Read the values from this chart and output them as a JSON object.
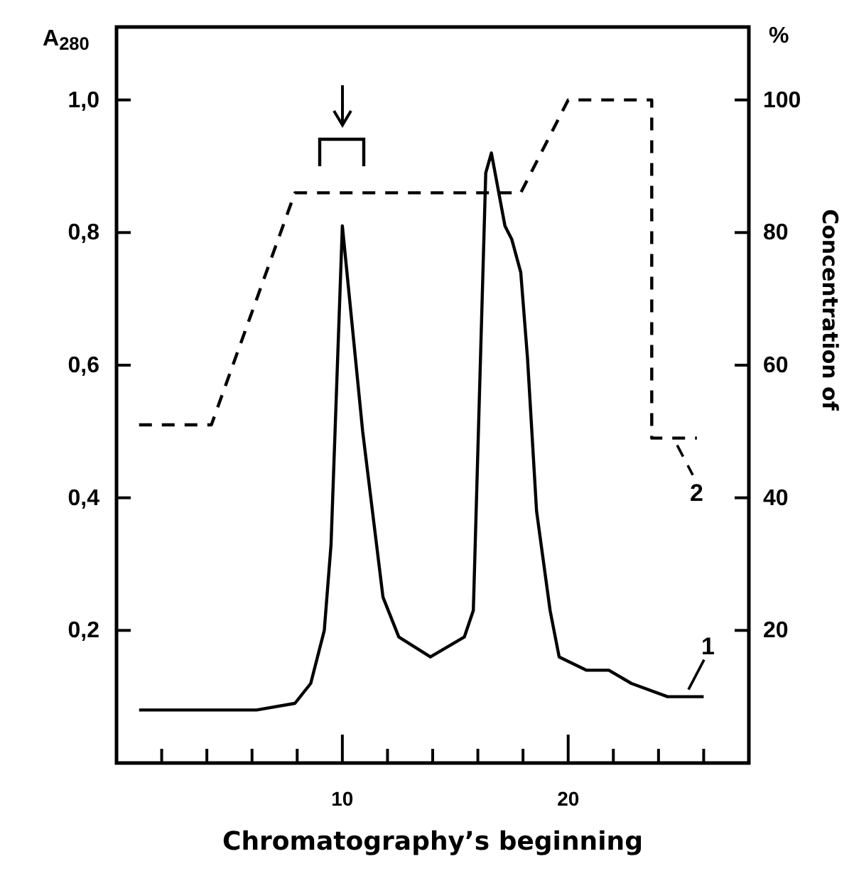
{
  "chart_data": {
    "type": "line",
    "xlabel": "Chromatography’s beginning",
    "ylabel": "A$_{280}$",
    "y2label": "%",
    "xlim": [
      0,
      28
    ],
    "xticks": [
      {
        "value": 2,
        "label": null
      },
      {
        "value": 4,
        "label": null
      },
      {
        "value": 6,
        "label": null
      },
      {
        "value": 8,
        "label": null
      },
      10,
      {
        "value": 12,
        "label": null
      },
      {
        "value": 14,
        "label": null
      },
      {
        "value": 16,
        "label": null
      },
      {
        "value": 18,
        "label": null
      },
      20,
      {
        "value": 22,
        "label": null
      },
      {
        "value": 24,
        "label": null
      },
      {
        "value": 26,
        "label": null
      }
    ],
    "ylim": [
      0,
      1.11
    ],
    "yticks": [
      {
        "value": 0.2,
        "label": "0,2"
      },
      {
        "value": 0.4,
        "label": "0,4"
      },
      {
        "value": 0.6,
        "label": "0,6"
      },
      {
        "value": 0.8,
        "label": "0,8"
      },
      {
        "value": 1.0,
        "label": "1,0"
      }
    ],
    "y2lim": [
      0,
      111
    ],
    "y2ticks": [
      20,
      40,
      60,
      80,
      100
    ],
    "grid": false,
    "marker": "none",
    "series": [
      {
        "name": "1",
        "color": "#000000",
        "line_style": "solid",
        "x": [
          1.0,
          6.2,
          7.9,
          8.6,
          9.2,
          9.5,
          10.0,
          10.9,
          11.8,
          12.5,
          13.9,
          15.4,
          15.8,
          16.35,
          16.6,
          17.2,
          17.5,
          17.9,
          18.2,
          18.6,
          19.2,
          19.6,
          20.8,
          21.8,
          22.8,
          24.4,
          26.0
        ],
        "values": [
          0.08,
          0.08,
          0.09,
          0.12,
          0.2,
          0.33,
          0.81,
          0.5,
          0.25,
          0.19,
          0.16,
          0.19,
          0.23,
          0.89,
          0.92,
          0.81,
          0.79,
          0.74,
          0.61,
          0.38,
          0.23,
          0.16,
          0.14,
          0.14,
          0.12,
          0.1,
          0.1
        ]
      },
      {
        "name": "2",
        "color": "#000000",
        "line_style": "dashed",
        "axis": "y2",
        "x": [
          1.0,
          4.2,
          7.9,
          17.9,
          20.0,
          23.7,
          23.7,
          25.7
        ],
        "values": [
          51,
          51,
          86,
          86,
          100,
          100,
          49,
          49
        ]
      }
    ],
    "annotations": [
      "Concentration of"
    ]
  }
}
